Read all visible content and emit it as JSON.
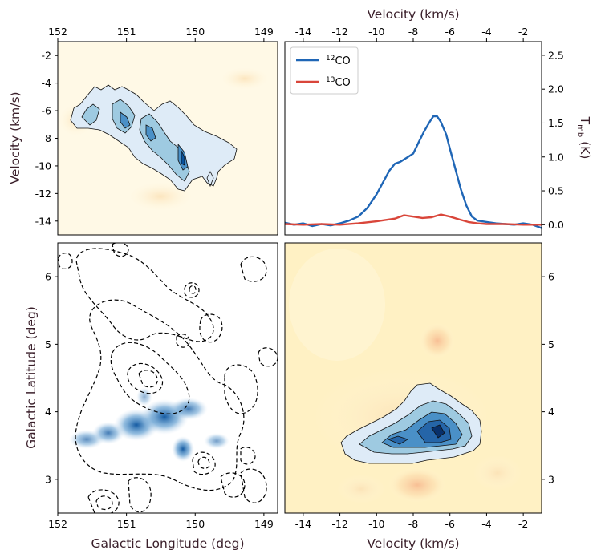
{
  "chart_data": [
    {
      "panel": "top-left",
      "type": "heatmap",
      "description": "position-velocity map with filled contours",
      "xlabel": "",
      "ylabel": "Velocity (km/s)",
      "xticks": [
        "152",
        "151",
        "150",
        "149"
      ],
      "yticks": [
        "-2",
        "-4",
        "-6",
        "-8",
        "-10",
        "-12",
        "-14"
      ],
      "xlim": [
        152,
        148.8
      ],
      "ylim": [
        -15,
        -1
      ]
    },
    {
      "panel": "top-right",
      "type": "line",
      "xlabel": "Velocity (km/s)",
      "ylabel": "T",
      "ylabel_sub": "mb",
      "ylabel_unit": " (K)",
      "xticks": [
        "-14",
        "-12",
        "-10",
        "-8",
        "-6",
        "-4",
        "-2"
      ],
      "yticks": [
        "0.0",
        "0.5",
        "1.0",
        "1.5",
        "2.0",
        "2.5"
      ],
      "xlim": [
        -15,
        -1
      ],
      "ylim": [
        -0.15,
        2.7
      ],
      "legend": "top-left",
      "series": [
        {
          "name": "CO",
          "sup": "12",
          "color": "#1f66b6",
          "x": [
            -15,
            -14.5,
            -14,
            -13.5,
            -13,
            -12.5,
            -12,
            -11.5,
            -11,
            -10.5,
            -10,
            -9.6,
            -9.3,
            -9,
            -8.7,
            -8.4,
            -8,
            -7.7,
            -7.4,
            -7.1,
            -6.9,
            -6.7,
            -6.5,
            -6.2,
            -6,
            -5.7,
            -5.4,
            -5.1,
            -4.8,
            -4.5,
            -4,
            -3.5,
            -3,
            -2.5,
            -2,
            -1.5,
            -1
          ],
          "y": [
            0.03,
            0.0,
            0.02,
            -0.02,
            0.01,
            -0.01,
            0.02,
            0.06,
            0.12,
            0.25,
            0.45,
            0.65,
            0.8,
            0.9,
            0.93,
            0.98,
            1.05,
            1.22,
            1.38,
            1.52,
            1.6,
            1.6,
            1.52,
            1.33,
            1.12,
            0.82,
            0.52,
            0.28,
            0.12,
            0.06,
            0.04,
            0.02,
            0.01,
            0.0,
            0.02,
            0.0,
            -0.05
          ]
        },
        {
          "name": "CO",
          "sup": "13",
          "color": "#d9463a",
          "x": [
            -15,
            -14,
            -13,
            -12,
            -11,
            -10,
            -9,
            -8.5,
            -8,
            -7.5,
            -7,
            -6.5,
            -6,
            -5.5,
            -5,
            -4.5,
            -4,
            -3,
            -2,
            -1
          ],
          "y": [
            0.01,
            0.0,
            0.01,
            0.0,
            0.02,
            0.05,
            0.09,
            0.14,
            0.12,
            0.1,
            0.11,
            0.15,
            0.12,
            0.08,
            0.04,
            0.02,
            0.01,
            0.01,
            0.0,
            0.0
          ]
        }
      ]
    },
    {
      "panel": "bottom-left",
      "type": "heatmap",
      "description": "integrated intensity map with dashed contours",
      "xlabel": "Galactic Longitude (deg)",
      "ylabel": "Galactic Latitude (deg)",
      "xticks": [
        "152",
        "151",
        "150",
        "149"
      ],
      "yticks": [
        "3",
        "4",
        "5",
        "6"
      ],
      "xlim": [
        152,
        148.8
      ],
      "ylim": [
        2.5,
        6.5
      ]
    },
    {
      "panel": "bottom-right",
      "type": "heatmap",
      "description": "velocity-latitude map with filled contours",
      "xlabel": "Velocity (km/s)",
      "ylabel": "",
      "xticks": [
        "-14",
        "-12",
        "-10",
        "-8",
        "-6",
        "-4",
        "-2"
      ],
      "yticks": [
        "3",
        "4",
        "5",
        "6"
      ],
      "xlim": [
        -15,
        -1
      ],
      "ylim": [
        2.5,
        6.5
      ]
    }
  ]
}
